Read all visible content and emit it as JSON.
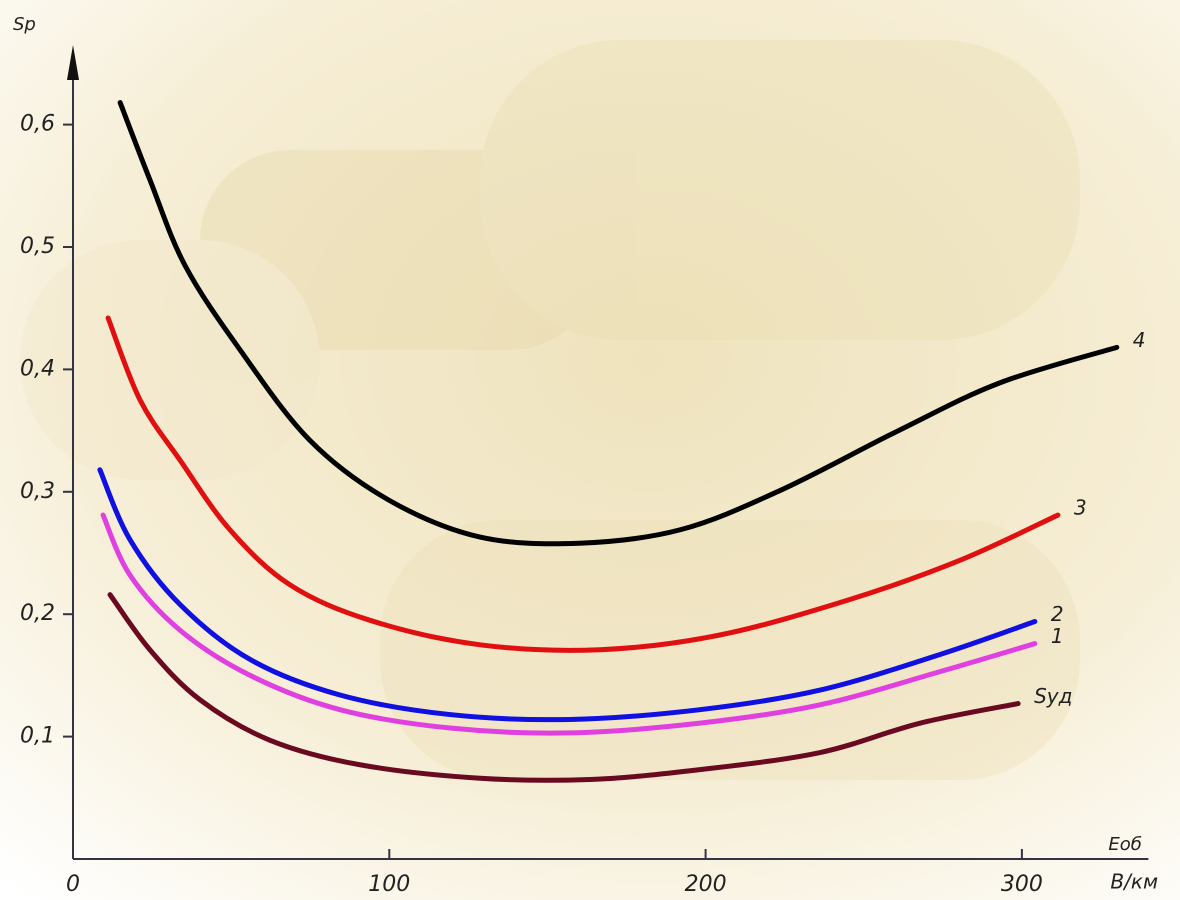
{
  "chart_data": {
    "type": "line",
    "y_label": "Sр",
    "x_label": "Eоб",
    "x_unit": "В/км",
    "xlim": [
      0,
      340
    ],
    "ylim": [
      0,
      0.665
    ],
    "xticks": [
      0,
      100,
      200,
      300
    ],
    "yticks": [
      {
        "value": 0.1,
        "label": "0,1"
      },
      {
        "value": 0.2,
        "label": "0,2"
      },
      {
        "value": 0.3,
        "label": "0,3"
      },
      {
        "value": 0.4,
        "label": "0,4"
      },
      {
        "value": 0.5,
        "label": "0,5"
      },
      {
        "value": 0.6,
        "label": "0,6"
      }
    ],
    "series": [
      {
        "name": "4",
        "color": "#000000",
        "x": [
          14.9,
          24.3,
          35.4,
          52.8,
          74.9,
          100,
          128.7,
          160,
          192,
          223.5,
          261,
          293,
          330
        ],
        "values": [
          0.618,
          0.555,
          0.485,
          0.416,
          0.342,
          0.293,
          0.263,
          0.258,
          0.269,
          0.301,
          0.35,
          0.389,
          0.418
        ]
      },
      {
        "name": "3",
        "color": "#e01010",
        "x": [
          11.1,
          21.2,
          33.8,
          49.6,
          68.6,
          93.9,
          128.7,
          166.6,
          204.5,
          245.6,
          280.4,
          311.4
        ],
        "values": [
          0.442,
          0.375,
          0.326,
          0.269,
          0.224,
          0.195,
          0.175,
          0.171,
          0.183,
          0.212,
          0.244,
          0.281
        ]
      },
      {
        "name": "2",
        "color": "#1010e0",
        "x": [
          8.5,
          18,
          33.8,
          56,
          84.4,
          119.2,
          157.1,
          198.2,
          236.2,
          274,
          304.1
        ],
        "values": [
          0.318,
          0.261,
          0.208,
          0.163,
          0.134,
          0.118,
          0.114,
          0.122,
          0.138,
          0.167,
          0.194
        ]
      },
      {
        "name": "1",
        "color": "#e040e0",
        "x": [
          9.5,
          18,
          33.8,
          56,
          84.4,
          119.2,
          157.1,
          198.2,
          236.2,
          274,
          304.1
        ],
        "values": [
          0.281,
          0.232,
          0.187,
          0.15,
          0.122,
          0.107,
          0.103,
          0.111,
          0.126,
          0.153,
          0.176
        ]
      },
      {
        "name": "Sуд",
        "color": "#6a0a20",
        "x": [
          11.7,
          24.3,
          40.2,
          62.3,
          90.7,
          128.7,
          163.5,
          198.2,
          236.2,
          267.8,
          298.8
        ],
        "values": [
          0.216,
          0.171,
          0.13,
          0.097,
          0.077,
          0.066,
          0.065,
          0.073,
          0.087,
          0.111,
          0.127
        ]
      }
    ]
  }
}
